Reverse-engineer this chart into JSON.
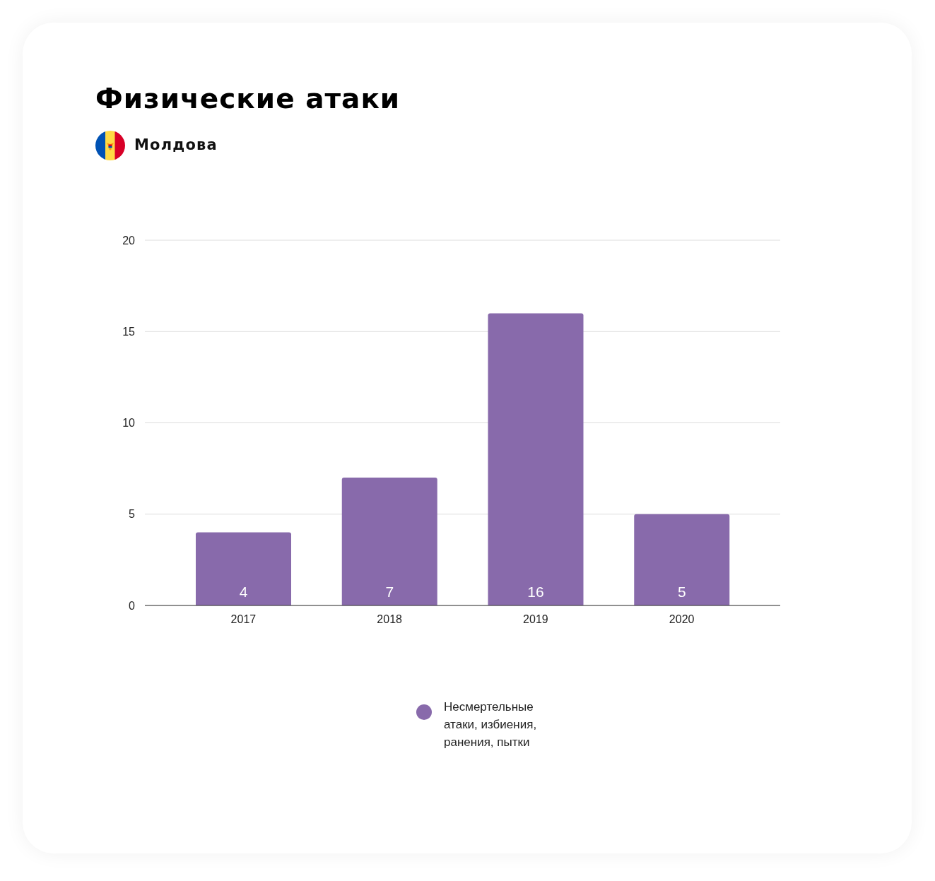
{
  "chart_data": {
    "type": "bar",
    "title": "Физические атаки",
    "subtitle": "Молдова",
    "categories": [
      "2017",
      "2018",
      "2019",
      "2020"
    ],
    "series": [
      {
        "name": "Несмертельные атаки, избиения, ранения, пытки",
        "color": "#886aab",
        "values": [
          4,
          7,
          16,
          5
        ]
      }
    ],
    "ylim": [
      0,
      20
    ],
    "yticks": [
      0,
      5,
      10,
      15,
      20
    ],
    "grid": "y",
    "legend": "bottom",
    "data_labels": true
  }
}
